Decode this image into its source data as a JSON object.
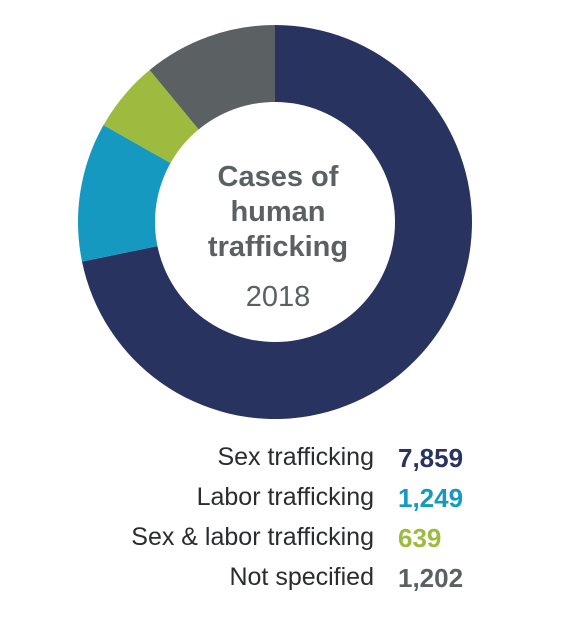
{
  "chart_data": {
    "type": "pie",
    "subtype": "donut",
    "title_lines": [
      "Cases of",
      "human",
      "trafficking"
    ],
    "subtitle": "2018",
    "categories": [
      "Sex trafficking",
      "Labor trafficking",
      "Sex & labor trafficking",
      "Not specified"
    ],
    "values": [
      7859,
      1249,
      639,
      1202
    ],
    "value_labels": [
      "7,859",
      "1,249",
      "639",
      "1,202"
    ],
    "colors": [
      "#283360",
      "#1699c0",
      "#9dbb3f",
      "#5b6062"
    ],
    "legend_placement": "bottom"
  }
}
